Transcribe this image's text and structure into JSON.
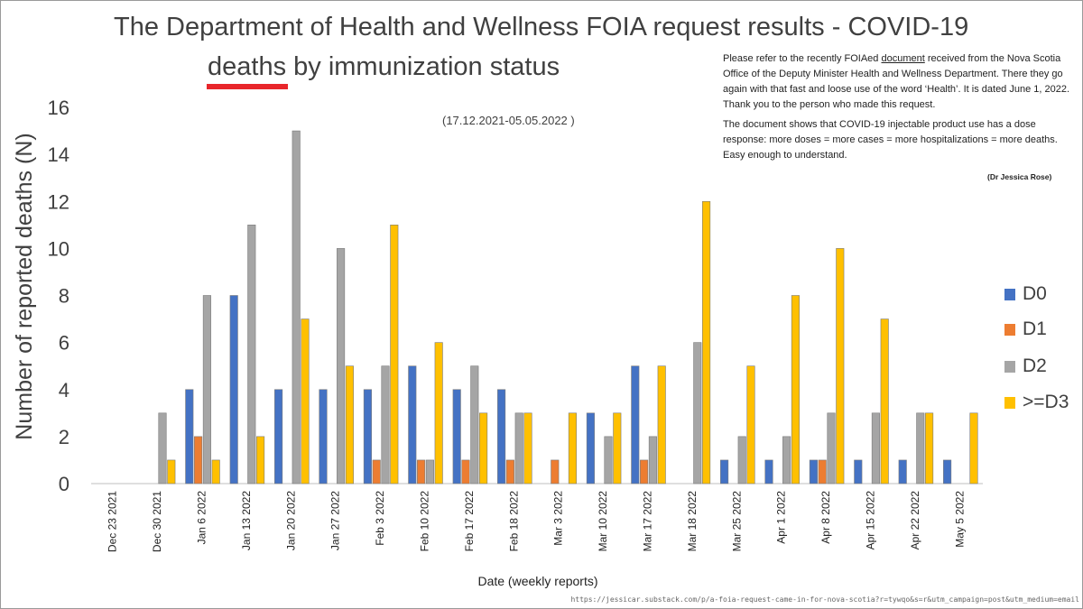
{
  "title_line1": "The Department of Health and Wellness FOIA request results - COVID-19",
  "title_highlight": "deaths",
  "title_line2_rest": " by immunization status",
  "date_range": "(17.12.2021-05.05.2022 )",
  "note": {
    "p1_before": "Please refer to the recently FOIAed ",
    "p1_link": "document",
    "p1_after": " received from the Nova Scotia Office of the Deputy Minister Health and Wellness Department. There they go again with that fast and loose use of the word ‘Health’. It is dated June 1, 2022. Thank you to the person who made this request.",
    "p2": "The document shows that COVID-19 injectable product use has a dose response: more doses = more cases = more hospitalizations = more deaths. Easy enough to understand.",
    "signature": "(Dr Jessica Rose)"
  },
  "source_url": "https://jessicar.substack.com/p/a-foia-request-came-in-for-nova-scotia?r=tywqo&s=r&utm_campaign=post&utm_medium=email",
  "colors": {
    "D0": "#4472c4",
    "D1": "#ed7d31",
    "D2": "#a5a5a5",
    "D3": "#ffc000"
  },
  "chart_data": {
    "type": "bar",
    "title": "The Department of Health and Wellness FOIA request results - COVID-19 deaths by immunization status",
    "subtitle": "(17.12.2021-05.05.2022 )",
    "xlabel": "Date (weekly reports)",
    "ylabel": "Number of reported deaths (N)",
    "ylim": [
      0,
      16
    ],
    "yticks": [
      0,
      2,
      4,
      6,
      8,
      10,
      12,
      14,
      16
    ],
    "grid": false,
    "legend_position": "right",
    "categories": [
      "Dec 23 2021",
      "Dec 30 2021",
      "Jan 6 2022",
      "Jan 13 2022",
      "Jan 20 2022",
      "Jan 27 2022",
      "Feb 3 2022",
      "Feb 10 2022",
      "Feb 17 2022",
      "Feb 18 2022",
      "Mar 3 2022",
      "Mar 10 2022",
      "Mar 17 2022",
      "Mar 18 2022",
      "Mar 25 2022",
      "Apr 1 2022",
      "Apr 8 2022",
      "Apr 15 2022",
      "Apr 22 2022",
      "May 5 2022"
    ],
    "series": [
      {
        "name": "D0",
        "values": [
          0,
          0,
          4,
          8,
          4,
          4,
          4,
          5,
          4,
          4,
          0,
          3,
          5,
          0,
          1,
          1,
          1,
          1,
          1,
          1
        ]
      },
      {
        "name": "D1",
        "values": [
          0,
          0,
          2,
          0,
          0,
          0,
          1,
          1,
          1,
          1,
          1,
          0,
          1,
          0,
          0,
          0,
          1,
          0,
          0,
          0
        ]
      },
      {
        "name": "D2",
        "values": [
          0,
          3,
          8,
          11,
          15,
          10,
          5,
          1,
          5,
          3,
          0,
          2,
          2,
          6,
          2,
          2,
          3,
          3,
          3,
          0
        ]
      },
      {
        "name": ">=D3",
        "values": [
          0,
          1,
          1,
          2,
          7,
          5,
          11,
          6,
          3,
          3,
          3,
          3,
          5,
          12,
          5,
          8,
          10,
          7,
          3,
          3
        ]
      }
    ]
  }
}
